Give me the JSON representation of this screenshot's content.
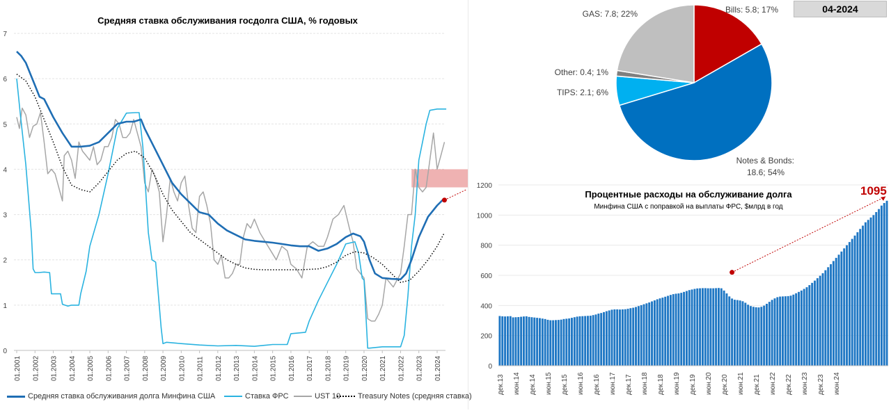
{
  "chart_data": [
    {
      "type": "line",
      "title": "Средняя ставка обслуживания госдолга США, % годовых",
      "xlabel": "",
      "ylabel": "",
      "ylim": [
        0,
        7
      ],
      "yticks": [
        "0",
        "1",
        "2",
        "3",
        "4",
        "5",
        "6",
        "7"
      ],
      "xticks": [
        "01.2001",
        "01.2002",
        "01.2003",
        "01.2004",
        "01.2005",
        "01.2006",
        "01.2007",
        "01.2008",
        "01.2009",
        "01.2010",
        "01.2011",
        "01.2012",
        "01.2013",
        "01.2014",
        "01.2015",
        "01.2016",
        "01.2017",
        "01.2018",
        "01.2019",
        "01.2020",
        "01.2021",
        "01.2022",
        "01.2023",
        "01.2024"
      ],
      "grid": "horizontal",
      "legend_position": "bottom",
      "series": [
        {
          "name": "Средняя ставка обслуживания долга Минфина США",
          "color": "#1f6eb4",
          "x": [
            2001.0,
            2001.25,
            2001.5,
            2001.75,
            2002.0,
            2002.25,
            2002.5,
            2003.0,
            2003.5,
            2004.0,
            2004.5,
            2005.0,
            2005.5,
            2006.0,
            2006.5,
            2007.0,
            2007.4,
            2007.8,
            2008.0,
            2008.5,
            2009.0,
            2009.5,
            2010.0,
            2010.5,
            2011.0,
            2011.5,
            2012.0,
            2012.5,
            2013.0,
            2013.5,
            2014.0,
            2014.5,
            2015.0,
            2015.5,
            2016.0,
            2016.5,
            2017.0,
            2017.5,
            2018.0,
            2018.5,
            2019.0,
            2019.4,
            2019.8,
            2020.0,
            2020.3,
            2020.6,
            2021.0,
            2021.5,
            2022.0,
            2022.3,
            2022.6,
            2023.0,
            2023.5,
            2024.0,
            2024.3
          ],
          "values": [
            6.6,
            6.5,
            6.35,
            6.1,
            5.85,
            5.6,
            5.55,
            5.15,
            4.8,
            4.5,
            4.5,
            4.52,
            4.6,
            4.8,
            5.0,
            5.05,
            5.05,
            5.1,
            4.9,
            4.5,
            4.1,
            3.7,
            3.45,
            3.25,
            3.05,
            3.0,
            2.8,
            2.65,
            2.55,
            2.45,
            2.42,
            2.4,
            2.38,
            2.35,
            2.32,
            2.3,
            2.3,
            2.2,
            2.25,
            2.35,
            2.5,
            2.58,
            2.52,
            2.4,
            2.0,
            1.7,
            1.6,
            1.58,
            1.57,
            1.7,
            2.0,
            2.5,
            2.95,
            3.2,
            3.32
          ]
        },
        {
          "name": "Ставка ФРС",
          "color": "#2ab3e0",
          "x": [
            2001.0,
            2001.2,
            2001.5,
            2001.8,
            2001.9,
            2002.0,
            2002.2,
            2002.5,
            2002.8,
            2002.9,
            2003.4,
            2003.5,
            2003.8,
            2004.0,
            2004.4,
            2004.5,
            2004.8,
            2005.0,
            2005.5,
            2006.0,
            2006.5,
            2007.0,
            2007.5,
            2007.7,
            2007.9,
            2008.0,
            2008.2,
            2008.4,
            2008.6,
            2008.9,
            2009.0,
            2009.2,
            2010.0,
            2011.0,
            2012.0,
            2013.0,
            2014.0,
            2015.0,
            2015.8,
            2016.0,
            2016.8,
            2017.0,
            2017.5,
            2018.0,
            2018.5,
            2019.0,
            2019.5,
            2019.7,
            2019.9,
            2020.0,
            2020.2,
            2020.3,
            2021.0,
            2021.5,
            2022.0,
            2022.2,
            2022.4,
            2022.6,
            2022.8,
            2023.0,
            2023.2,
            2023.4,
            2023.6,
            2024.0,
            2024.5
          ],
          "values": [
            6.0,
            5.2,
            4.1,
            2.6,
            1.8,
            1.72,
            1.72,
            1.73,
            1.72,
            1.25,
            1.25,
            1.02,
            0.98,
            1.0,
            1.0,
            1.25,
            1.75,
            2.3,
            3.0,
            3.9,
            4.9,
            5.24,
            5.25,
            5.25,
            4.5,
            3.9,
            2.6,
            2.0,
            1.95,
            0.5,
            0.15,
            0.18,
            0.15,
            0.12,
            0.1,
            0.11,
            0.09,
            0.13,
            0.13,
            0.37,
            0.4,
            0.65,
            1.1,
            1.5,
            1.9,
            2.35,
            2.4,
            2.15,
            1.6,
            1.55,
            0.05,
            0.05,
            0.08,
            0.08,
            0.08,
            0.33,
            1.2,
            2.3,
            3.0,
            4.2,
            4.6,
            5.0,
            5.3,
            5.33,
            5.33
          ]
        },
        {
          "name": "UST 10",
          "color": "#a6a6a6",
          "x": [
            2001.0,
            2001.15,
            2001.3,
            2001.5,
            2001.7,
            2001.9,
            2002.1,
            2002.3,
            2002.5,
            2002.7,
            2002.9,
            2003.1,
            2003.3,
            2003.5,
            2003.6,
            2003.8,
            2004.0,
            2004.2,
            2004.4,
            2004.6,
            2004.8,
            2005.0,
            2005.2,
            2005.4,
            2005.6,
            2005.8,
            2006.0,
            2006.2,
            2006.4,
            2006.6,
            2006.8,
            2007.0,
            2007.2,
            2007.4,
            2007.6,
            2007.8,
            2008.0,
            2008.2,
            2008.4,
            2008.6,
            2008.8,
            2009.0,
            2009.2,
            2009.4,
            2009.6,
            2009.8,
            2010.0,
            2010.2,
            2010.4,
            2010.6,
            2010.8,
            2011.0,
            2011.2,
            2011.4,
            2011.6,
            2011.8,
            2012.0,
            2012.2,
            2012.4,
            2012.6,
            2012.8,
            2013.0,
            2013.2,
            2013.4,
            2013.6,
            2013.8,
            2014.0,
            2014.3,
            2014.6,
            2014.9,
            2015.2,
            2015.5,
            2015.8,
            2016.0,
            2016.3,
            2016.6,
            2016.9,
            2017.2,
            2017.5,
            2017.8,
            2018.0,
            2018.3,
            2018.6,
            2018.9,
            2019.2,
            2019.4,
            2019.6,
            2019.8,
            2020.0,
            2020.2,
            2020.4,
            2020.6,
            2020.8,
            2021.0,
            2021.2,
            2021.4,
            2021.6,
            2021.8,
            2022.0,
            2022.2,
            2022.4,
            2022.6,
            2022.8,
            2023.0,
            2023.2,
            2023.4,
            2023.6,
            2023.8,
            2024.0,
            2024.2,
            2024.4
          ],
          "values": [
            5.15,
            4.9,
            5.35,
            5.2,
            4.7,
            4.95,
            5.0,
            5.25,
            4.6,
            3.9,
            4.0,
            3.9,
            3.6,
            3.3,
            4.3,
            4.4,
            4.2,
            3.8,
            4.6,
            4.4,
            4.3,
            4.2,
            4.5,
            4.1,
            4.2,
            4.5,
            4.5,
            4.7,
            5.1,
            5.0,
            4.7,
            4.7,
            4.8,
            5.1,
            4.8,
            4.5,
            3.7,
            3.5,
            4.0,
            3.8,
            3.5,
            2.4,
            3.0,
            3.8,
            3.5,
            3.3,
            3.7,
            3.85,
            3.2,
            2.7,
            2.6,
            3.4,
            3.5,
            3.2,
            2.8,
            2.0,
            1.9,
            2.1,
            1.6,
            1.6,
            1.7,
            1.9,
            1.9,
            2.5,
            2.8,
            2.7,
            2.9,
            2.6,
            2.4,
            2.2,
            2.0,
            2.3,
            2.2,
            1.9,
            1.8,
            1.6,
            2.3,
            2.4,
            2.3,
            2.3,
            2.5,
            2.9,
            3.0,
            3.2,
            2.7,
            2.4,
            1.8,
            1.7,
            1.6,
            0.7,
            0.65,
            0.65,
            0.8,
            1.0,
            1.6,
            1.5,
            1.4,
            1.55,
            1.7,
            2.3,
            3.0,
            3.0,
            4.0,
            3.6,
            3.5,
            3.6,
            4.2,
            4.8,
            4.0,
            4.3,
            4.6
          ]
        },
        {
          "name": "Treasury Notes (средняя ставка)",
          "color": "#000000",
          "x": [
            2001.0,
            2001.5,
            2002.0,
            2002.5,
            2003.0,
            2003.5,
            2004.0,
            2004.5,
            2005.0,
            2005.5,
            2006.0,
            2006.5,
            2007.0,
            2007.5,
            2008.0,
            2008.5,
            2009.0,
            2009.5,
            2010.0,
            2010.5,
            2011.0,
            2011.5,
            2012.0,
            2012.5,
            2013.0,
            2013.5,
            2014.0,
            2014.5,
            2015.0,
            2015.5,
            2016.0,
            2016.5,
            2017.0,
            2017.5,
            2018.0,
            2018.5,
            2019.0,
            2019.5,
            2020.0,
            2020.5,
            2021.0,
            2021.5,
            2022.0,
            2022.5,
            2023.0,
            2023.5,
            2024.0,
            2024.4
          ],
          "values": [
            6.1,
            5.95,
            5.6,
            5.1,
            4.6,
            4.05,
            3.65,
            3.55,
            3.5,
            3.7,
            3.95,
            4.2,
            4.35,
            4.4,
            4.25,
            3.9,
            3.45,
            3.1,
            2.85,
            2.6,
            2.45,
            2.3,
            2.15,
            2.0,
            1.9,
            1.82,
            1.79,
            1.78,
            1.78,
            1.78,
            1.78,
            1.78,
            1.79,
            1.8,
            1.85,
            1.95,
            2.1,
            2.18,
            2.15,
            2.05,
            1.9,
            1.7,
            1.5,
            1.55,
            1.75,
            2.0,
            2.3,
            2.6
          ]
        }
      ],
      "annotation": {
        "highlight_y_range": [
          3.6,
          4.0
        ],
        "highlight_x_from": 2022.6,
        "marker_x": 2024.4,
        "marker_y": 3.32,
        "color": "#e06666"
      }
    },
    {
      "type": "pie",
      "title": "",
      "labels": [
        "Bills: 5.8; 17%",
        "Notes & Bonds: 18.6; 54%",
        "TIPS: 2.1; 6%",
        "Other: 0.4; 1%",
        "GAS: 7.8; 22%"
      ],
      "values": [
        5.8,
        18.6,
        2.1,
        0.4,
        7.8
      ],
      "colors": [
        "#c00000",
        "#0070c0",
        "#00b0f0",
        "#7f7f7f",
        "#bfbfbf"
      ]
    },
    {
      "type": "bar",
      "title": "Процентные расходы на обслуживание долга",
      "subtitle": "Минфина США с поправкой на выплаты ФРС, $млрд в год",
      "ylim": [
        0,
        1200
      ],
      "yticks": [
        "0",
        "200",
        "400",
        "600",
        "800",
        "1000",
        "1200"
      ],
      "xtick_labels": [
        "дек.13",
        "июн.14",
        "дек.14",
        "июн.15",
        "дек.15",
        "июн.16",
        "дек.16",
        "июн.17",
        "дек.17",
        "июн.18",
        "дек.18",
        "июн.19",
        "дек.19",
        "июн.20",
        "дек.20",
        "июн.21",
        "дек.21",
        "июн.22",
        "дек.22",
        "июн.23",
        "дек.23",
        "июн.24"
      ],
      "xtick_every": 6,
      "highlight_label": "1095",
      "highlight_color": "#c00000",
      "bar_color": "#1f77c4",
      "values": [
        330,
        328,
        327,
        328,
        329,
        321,
        322,
        323,
        325,
        327,
        328,
        324,
        322,
        320,
        318,
        316,
        313,
        310,
        305,
        302,
        302,
        303,
        304,
        306,
        310,
        312,
        314,
        318,
        322,
        326,
        328,
        329,
        330,
        331,
        332,
        336,
        340,
        346,
        350,
        356,
        362,
        367,
        372,
        374,
        374,
        373,
        374,
        375,
        378,
        382,
        385,
        390,
        396,
        402,
        408,
        414,
        420,
        427,
        434,
        441,
        447,
        452,
        458,
        464,
        470,
        475,
        478,
        480,
        484,
        490,
        496,
        502,
        506,
        510,
        513,
        514,
        515,
        515,
        514,
        514,
        514,
        515,
        516,
        514,
        499,
        480,
        460,
        446,
        438,
        436,
        433,
        428,
        418,
        405,
        396,
        391,
        388,
        387,
        391,
        399,
        411,
        424,
        437,
        447,
        455,
        459,
        460,
        461,
        462,
        465,
        472,
        481,
        490,
        499,
        510,
        521,
        535,
        550,
        565,
        581,
        597,
        614,
        634,
        654,
        674,
        695,
        716,
        737,
        758,
        779,
        800,
        821,
        842,
        864,
        886,
        908,
        930,
        952,
        968,
        984,
        1000,
        1020,
        1040,
        1063,
        1080,
        1095
      ]
    }
  ],
  "legend": {
    "items": [
      "Средняя ставка обслуживания долга Минфина США",
      "Ставка ФРС",
      "UST 10",
      "Treasury Notes (средняя ставка)"
    ]
  },
  "badge": {
    "label": "04-2024"
  }
}
